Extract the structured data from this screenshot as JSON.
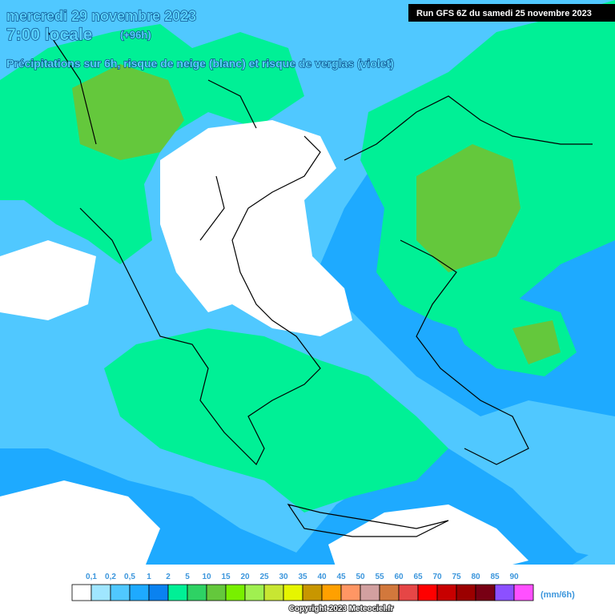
{
  "header": {
    "date": "mercredi 29 novembre 2023",
    "time": "7:00 locale",
    "offset": "(+96h)",
    "description": "Précipitations sur 6h, risque de neige (blanc) et risque de verglas (violet)",
    "run": "Run GFS 6Z du samedi 25 novembre 2023"
  },
  "legend": {
    "labels": [
      "0,1",
      "0,2",
      "0,5",
      "1",
      "2",
      "5",
      "10",
      "15",
      "20",
      "25",
      "30",
      "35",
      "40",
      "45",
      "50",
      "55",
      "60",
      "65",
      "70",
      "75",
      "80",
      "85",
      "90"
    ],
    "colors": [
      "#ffffff",
      "#a0e6ff",
      "#50c8ff",
      "#1eaaff",
      "#0a82f0",
      "#00f096",
      "#2ed264",
      "#64c83c",
      "#78f000",
      "#a0f050",
      "#c8e632",
      "#e6f500",
      "#c89600",
      "#ffa000",
      "#ff9664",
      "#d2a0a0",
      "#d2783c",
      "#e64646",
      "#ff0000",
      "#c80000",
      "#9b0000",
      "#780014",
      "#8c50ff",
      "#ff50ff"
    ],
    "unit": "(mm/6h)"
  },
  "footer": {
    "copyright": "Copyright 2023 Meteociel.fr"
  }
}
